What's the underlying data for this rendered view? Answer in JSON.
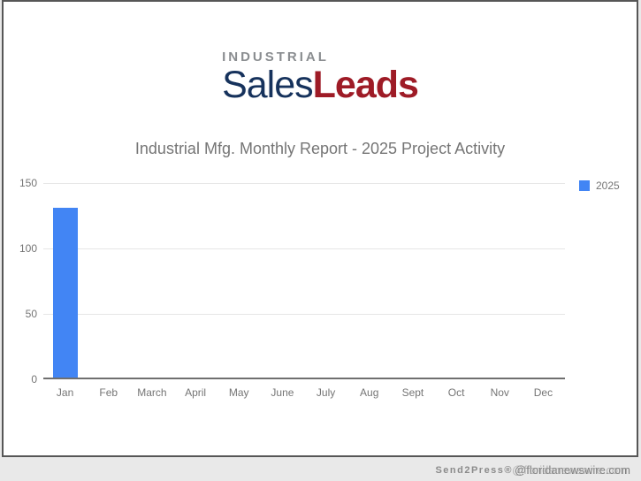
{
  "logo": {
    "top": "INDUSTRIAL",
    "part1": "Sales",
    "part2": "Leads"
  },
  "footer": {
    "brand": "Send2Press®",
    "domain": "@floridanewswire.com"
  },
  "colors": {
    "bar_blue": "#4285f4",
    "logo_gray": "#8a8d90",
    "logo_navy": "#16325c",
    "logo_red": "#9e1b26",
    "title_gray": "#757575",
    "gridline": "#e6e6e6",
    "axis_line": "#6f6f6f",
    "card_border": "#565656",
    "outer_bg": "#e9e9e9"
  },
  "chart_data": {
    "type": "bar",
    "title": "Industrial Mfg. Monthly Report - 2025 Project Activity",
    "categories": [
      "Jan",
      "Feb",
      "March",
      "April",
      "May",
      "June",
      "July",
      "Aug",
      "Sept",
      "Oct",
      "Nov",
      "Dec"
    ],
    "series": [
      {
        "name": "2025",
        "color": "#4285f4",
        "values": [
          130,
          0,
          0,
          0,
          0,
          0,
          0,
          0,
          0,
          0,
          0,
          0
        ]
      }
    ],
    "xlabel": "",
    "ylabel": "",
    "ylim": [
      0,
      150
    ],
    "yticks": [
      0,
      50,
      100,
      150
    ],
    "grid": true,
    "legend_position": "right"
  }
}
